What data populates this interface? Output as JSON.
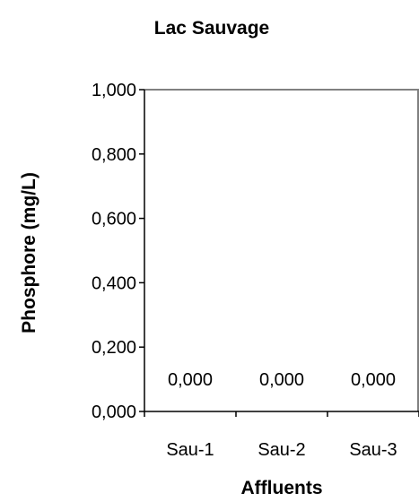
{
  "chart_data": {
    "type": "bar",
    "title": "Lac Sauvage",
    "xlabel": "Affluents",
    "ylabel": "Phosphore (mg/L)",
    "categories": [
      "Sau-1",
      "Sau-2",
      "Sau-3"
    ],
    "series": [
      {
        "values": [
          0,
          0,
          0
        ],
        "data_labels": [
          "0,000",
          "0,000",
          "0,000"
        ]
      }
    ],
    "ylim": [
      0,
      1
    ],
    "yticks": [
      0,
      0.2,
      0.4,
      0.6,
      0.8,
      1.0
    ],
    "ytick_labels": [
      "0,000",
      "0,200",
      "0,400",
      "0,600",
      "0,800",
      "1,000"
    ],
    "grid": false,
    "legend": "none",
    "colors": {
      "axis": "#000000",
      "plot_border": "#808080",
      "bar": "#9999ff",
      "text": "#000000"
    }
  }
}
